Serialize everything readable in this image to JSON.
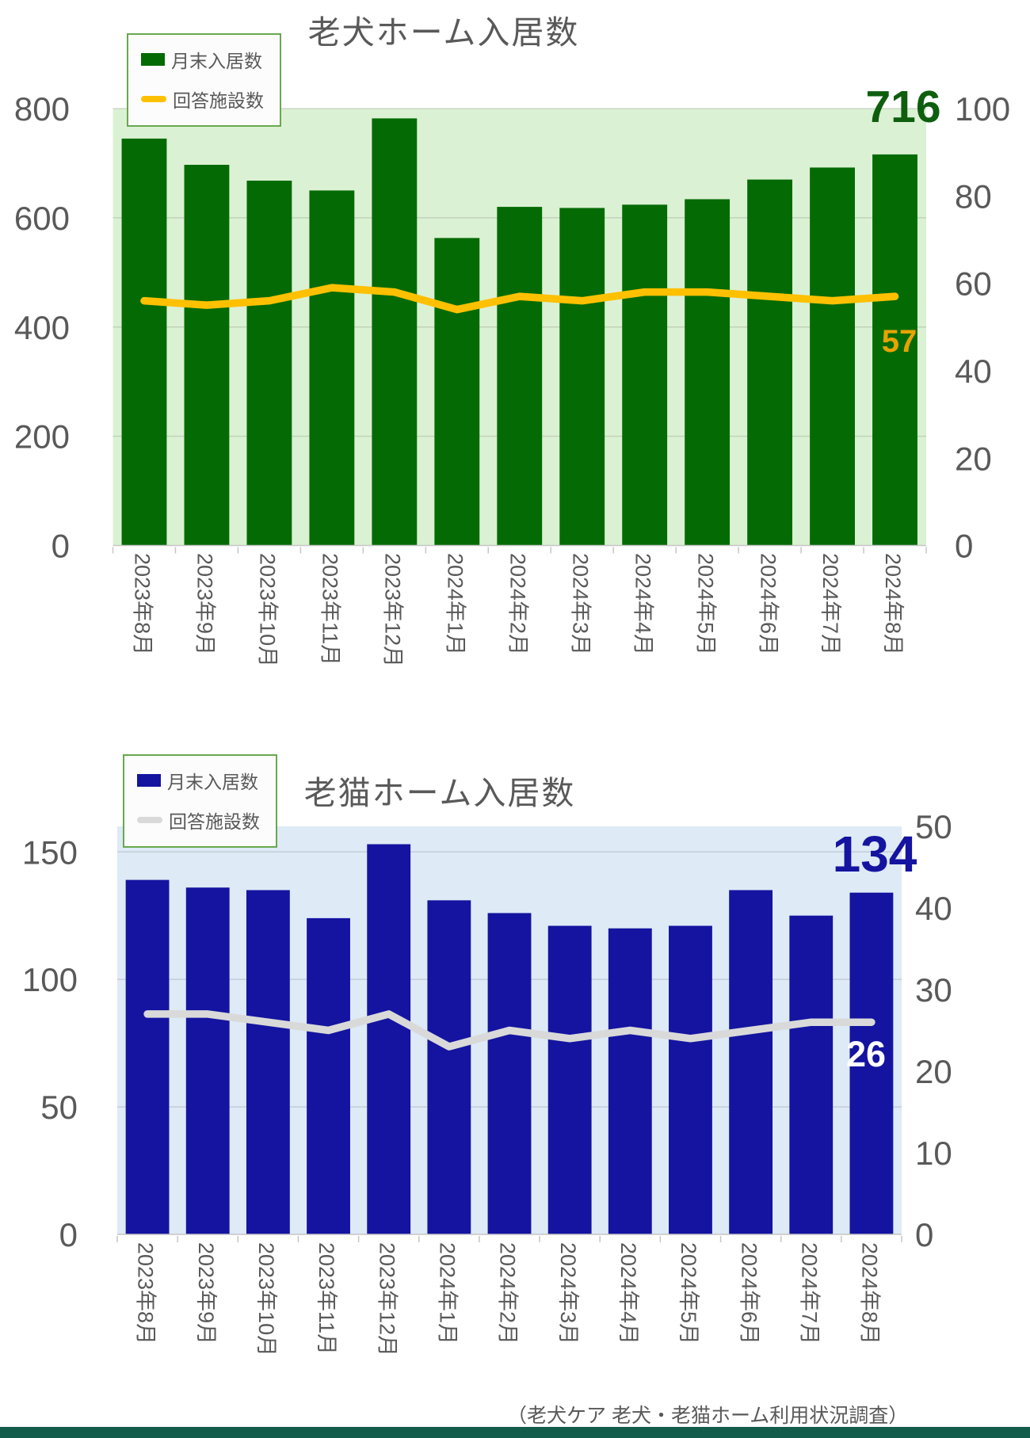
{
  "page": {
    "footer_caption": "（老犬ケア 老犬・老猫ホーム利用状況調査）",
    "footer_bar_color": "#135C4B",
    "background": "#FFFFFF",
    "text_color": "#595959"
  },
  "chart_data": [
    {
      "type": "bar",
      "subtype": "bar-line-combo",
      "title": "老犬ホーム入居数",
      "categories": [
        "2023年8月",
        "2023年9月",
        "2023年10月",
        "2023年11月",
        "2023年12月",
        "2024年1月",
        "2024年2月",
        "2024年3月",
        "2024年4月",
        "2024年5月",
        "2024年6月",
        "2024年7月",
        "2024年8月"
      ],
      "series": [
        {
          "name": "月末入居数",
          "type": "bar",
          "axis": "left",
          "color": "#046B04",
          "values": [
            745,
            697,
            668,
            650,
            782,
            563,
            620,
            618,
            624,
            634,
            670,
            692,
            716
          ]
        },
        {
          "name": "回答施設数",
          "type": "line",
          "axis": "right",
          "color": "#FFC000",
          "values": [
            56,
            55,
            56,
            59,
            58,
            54,
            57,
            56,
            58,
            58,
            57,
            56,
            57
          ]
        }
      ],
      "left_axis": {
        "min": 0,
        "max": 800,
        "ticks": [
          0,
          200,
          400,
          600,
          800
        ]
      },
      "right_axis": {
        "min": 0,
        "max": 100,
        "ticks": [
          0,
          20,
          40,
          60,
          80,
          100
        ]
      },
      "plot_background": "#DBF1D3",
      "grid": true,
      "legend_position": "top-left",
      "callouts": [
        {
          "text": "716",
          "series": "月末入居数",
          "color": "#0E5E0E"
        },
        {
          "text": "57",
          "series": "回答施設数",
          "color": "#E8A200"
        }
      ]
    },
    {
      "type": "bar",
      "subtype": "bar-line-combo",
      "title": "老猫ホーム入居数",
      "categories": [
        "2023年8月",
        "2023年9月",
        "2023年10月",
        "2023年11月",
        "2023年12月",
        "2024年1月",
        "2024年2月",
        "2024年3月",
        "2024年4月",
        "2024年5月",
        "2024年6月",
        "2024年7月",
        "2024年8月"
      ],
      "series": [
        {
          "name": "月末入居数",
          "type": "bar",
          "axis": "left",
          "color": "#1414A0",
          "values": [
            139,
            136,
            135,
            124,
            153,
            131,
            126,
            121,
            120,
            121,
            135,
            125,
            134
          ]
        },
        {
          "name": "回答施設数",
          "type": "line",
          "axis": "right",
          "color": "#D9D9D9",
          "values": [
            27,
            27,
            26,
            25,
            27,
            23,
            25,
            24,
            25,
            24,
            25,
            26,
            26
          ]
        }
      ],
      "left_axis": {
        "min": 0,
        "max": 160,
        "ticks": [
          0,
          50,
          100,
          150
        ]
      },
      "right_axis": {
        "min": 0,
        "max": 50,
        "ticks": [
          0,
          10,
          20,
          30,
          40,
          50
        ]
      },
      "plot_background": "#DEEAF6",
      "grid": true,
      "legend_position": "top-left",
      "callouts": [
        {
          "text": "134",
          "series": "月末入居数",
          "color": "#1414A0"
        },
        {
          "text": "26",
          "series": "回答施設数",
          "color": "#FFFFFF"
        }
      ]
    }
  ]
}
